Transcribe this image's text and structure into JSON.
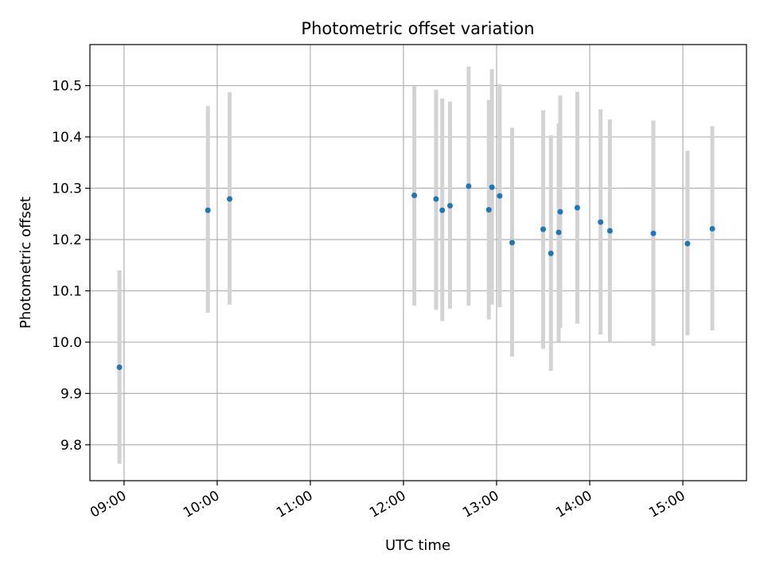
{
  "chart_data": {
    "type": "scatter",
    "title": "Photometric offset variation",
    "xlabel": "UTC time",
    "ylabel": "Photometric offset",
    "x_tick_labels": [
      "09:00",
      "10:00",
      "11:00",
      "12:00",
      "13:00",
      "14:00",
      "15:00"
    ],
    "y_tick_labels": [
      "9.8",
      "9.9",
      "10.0",
      "10.1",
      "10.2",
      "10.3",
      "10.4",
      "10.5"
    ],
    "y_ticks": [
      9.8,
      9.9,
      10.0,
      10.1,
      10.2,
      10.3,
      10.4,
      10.5
    ],
    "xlim": [
      "08:38",
      "15:41"
    ],
    "ylim": [
      9.73,
      10.58
    ],
    "grid": true,
    "x_tick_rotation": "30deg",
    "colors": {
      "point": "#1f77b4",
      "errorbar": "#d3d3d3",
      "grid": "#b0b0b0"
    },
    "series": [
      {
        "x": [
          "08:57",
          "09:54",
          "10:08",
          "12:07",
          "12:21",
          "12:25",
          "12:30",
          "12:42",
          "12:55",
          "12:57",
          "13:02",
          "13:10",
          "13:30",
          "13:35",
          "13:40",
          "13:41",
          "13:52",
          "14:07",
          "14:13",
          "14:41",
          "15:03",
          "15:19"
        ],
        "y": [
          9.951,
          10.257,
          10.279,
          10.286,
          10.279,
          10.257,
          10.266,
          10.304,
          10.258,
          10.302,
          10.285,
          10.194,
          10.22,
          10.173,
          10.214,
          10.254,
          10.262,
          10.234,
          10.217,
          10.212,
          10.192,
          10.221
        ],
        "yerr_low": [
          9.763,
          10.057,
          10.073,
          10.071,
          10.063,
          10.041,
          10.065,
          10.071,
          10.044,
          10.073,
          10.068,
          9.972,
          9.987,
          9.944,
          10.001,
          10.028,
          10.036,
          10.015,
          10.0,
          9.993,
          10.013,
          10.023
        ],
        "yerr_high": [
          10.14,
          10.46,
          10.487,
          10.5,
          10.492,
          10.475,
          10.469,
          10.537,
          10.472,
          10.532,
          10.503,
          10.418,
          10.452,
          10.403,
          10.426,
          10.481,
          10.488,
          10.454,
          10.434,
          10.432,
          10.373,
          10.421
        ]
      }
    ]
  }
}
